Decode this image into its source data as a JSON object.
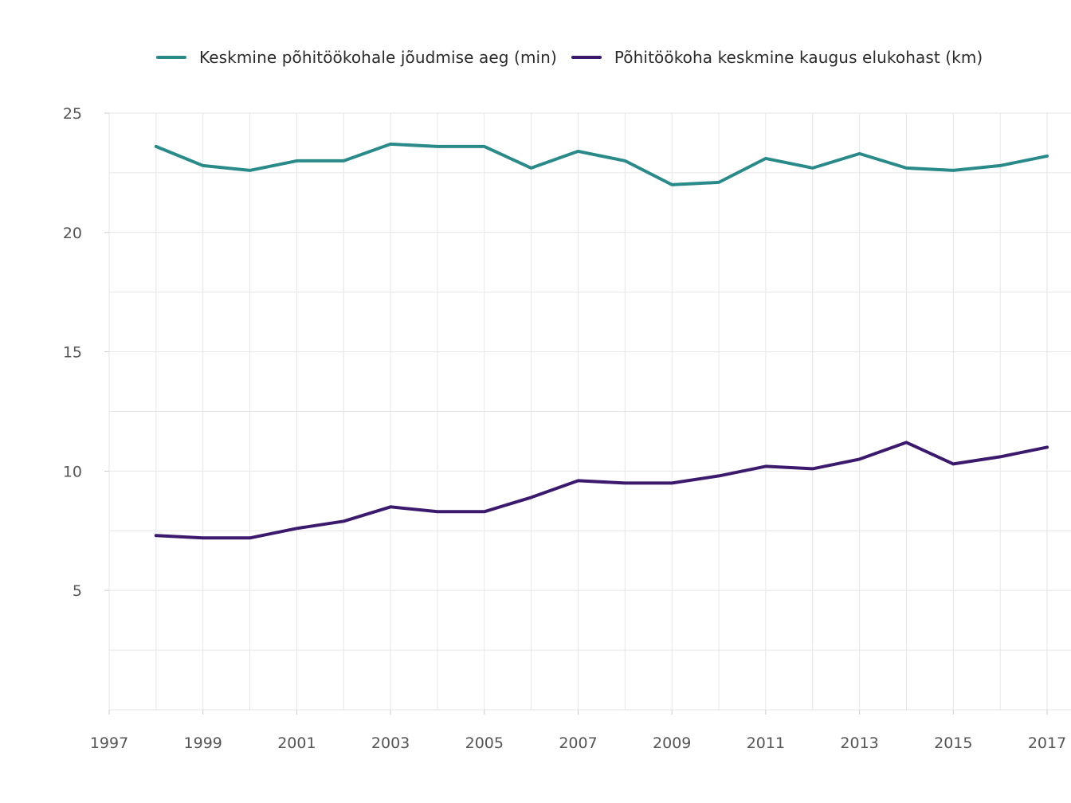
{
  "chart_data": {
    "type": "line",
    "x": [
      1998,
      1999,
      2000,
      2001,
      2002,
      2003,
      2004,
      2005,
      2006,
      2007,
      2008,
      2009,
      2010,
      2011,
      2012,
      2013,
      2014,
      2015,
      2016,
      2017
    ],
    "series": [
      {
        "name": "Keskmine põhitöökohale jõudmise aeg (min)",
        "color": "#2a8a8a",
        "values": [
          23.6,
          22.8,
          22.6,
          23.0,
          23.0,
          23.7,
          23.6,
          23.6,
          22.7,
          23.4,
          23.0,
          22.0,
          22.1,
          23.1,
          22.7,
          23.3,
          22.7,
          22.6,
          22.8,
          23.2
        ]
      },
      {
        "name": "Põhitöökoha keskmine kaugus elukohast (km)",
        "color": "#3b1a6e",
        "values": [
          7.3,
          7.2,
          7.2,
          7.6,
          7.9,
          8.5,
          8.3,
          8.3,
          8.9,
          9.6,
          9.5,
          9.5,
          9.8,
          10.2,
          10.1,
          10.5,
          11.2,
          10.3,
          10.6,
          11.0
        ]
      }
    ],
    "xlim": [
      1997,
      2017
    ],
    "ylim": [
      0,
      25
    ],
    "x_ticks": [
      "1997",
      "1999",
      "2001",
      "2003",
      "2005",
      "2007",
      "2009",
      "2011",
      "2013",
      "2015",
      "2017"
    ],
    "y_ticks": [
      "5",
      "10",
      "15",
      "20",
      "25"
    ],
    "title": "",
    "xlabel": "",
    "ylabel": "",
    "legend_position": "top",
    "grid": true,
    "grid_color": "#e6e6e6"
  }
}
